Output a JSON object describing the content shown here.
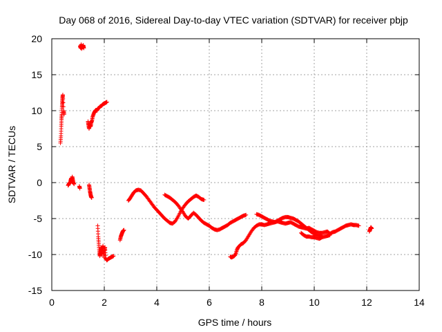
{
  "chart_data": {
    "type": "scatter",
    "title": "Day 068 of 2016, Sidereal Day-to-day VTEC variation (SDTVAR) for receiver pbjp",
    "xlabel": "GPS time / hours",
    "ylabel": "SDTVAR / TECUs",
    "xlim": [
      0,
      14
    ],
    "ylim": [
      -15,
      20
    ],
    "xticks": [
      "0",
      "2",
      "4",
      "6",
      "8",
      "10",
      "12",
      "14"
    ],
    "yticks": [
      "-15",
      "-10",
      "-5",
      "0",
      "5",
      "10",
      "15",
      "20"
    ],
    "grid": true,
    "marker": "+",
    "color": "#ff0000",
    "series": [
      {
        "name": "pbjp",
        "segments": [
          [
            [
              0.33,
              5.5
            ],
            [
              0.35,
              6.5
            ],
            [
              0.36,
              7.8
            ],
            [
              0.37,
              8.8
            ],
            [
              0.38,
              9.5
            ],
            [
              0.39,
              10.5
            ],
            [
              0.4,
              11.2
            ],
            [
              0.41,
              11.8
            ],
            [
              0.42,
              12.2
            ],
            [
              0.45,
              10.0
            ],
            [
              0.47,
              9.5
            ]
          ],
          [
            [
              1.08,
              19.0
            ],
            [
              1.1,
              18.7
            ],
            [
              1.12,
              19.2
            ],
            [
              1.14,
              18.6
            ],
            [
              1.16,
              19.0
            ],
            [
              1.18,
              18.8
            ],
            [
              1.2,
              19.1
            ],
            [
              1.22,
              18.7
            ]
          ],
          [
            [
              0.62,
              -0.4
            ],
            [
              0.65,
              -0.2
            ],
            [
              0.68,
              0.0
            ],
            [
              0.7,
              -0.1
            ],
            [
              0.72,
              0.3
            ],
            [
              0.74,
              0.6
            ],
            [
              0.76,
              0.2
            ],
            [
              0.78,
              0.8
            ],
            [
              0.8,
              0.4
            ],
            [
              0.82,
              0.0
            ],
            [
              0.85,
              -0.2
            ]
          ],
          [
            [
              1.05,
              -0.5
            ],
            [
              1.07,
              -0.8
            ]
          ],
          [
            [
              1.38,
              8.5
            ],
            [
              1.4,
              8.0
            ],
            [
              1.42,
              7.5
            ],
            [
              1.45,
              8.0
            ],
            [
              1.48,
              7.8
            ],
            [
              1.5,
              8.3
            ],
            [
              1.53,
              8.6
            ],
            [
              1.56,
              9.2
            ],
            [
              1.6,
              9.6
            ],
            [
              1.64,
              9.9
            ],
            [
              1.68,
              10.1
            ],
            [
              1.72,
              10.0
            ],
            [
              1.76,
              10.3
            ],
            [
              1.8,
              10.4
            ],
            [
              1.85,
              10.6
            ],
            [
              1.9,
              10.7
            ],
            [
              1.95,
              10.9
            ],
            [
              2.0,
              11.0
            ],
            [
              2.05,
              11.1
            ],
            [
              2.1,
              11.2
            ]
          ],
          [
            [
              1.42,
              -0.3
            ],
            [
              1.44,
              -0.8
            ],
            [
              1.46,
              -1.3
            ],
            [
              1.48,
              -1.7
            ],
            [
              1.5,
              -2.0
            ],
            [
              1.52,
              -2.1
            ]
          ],
          [
            [
              1.75,
              -6.0
            ],
            [
              1.77,
              -7.5
            ],
            [
              1.79,
              -8.5
            ],
            [
              1.81,
              -9.5
            ],
            [
              1.83,
              -10.2
            ],
            [
              1.85,
              -9.8
            ],
            [
              1.87,
              -9.0
            ],
            [
              1.89,
              -9.5
            ],
            [
              1.91,
              -10.0
            ],
            [
              1.93,
              -9.2
            ],
            [
              1.95,
              -8.8
            ],
            [
              1.97,
              -9.6
            ],
            [
              1.99,
              -10.4
            ],
            [
              2.01,
              -9.5
            ],
            [
              2.03,
              -9.0
            ],
            [
              2.05,
              -10.5
            ],
            [
              2.1,
              -10.8
            ],
            [
              2.15,
              -10.6
            ],
            [
              2.2,
              -10.5
            ],
            [
              2.25,
              -10.4
            ],
            [
              2.3,
              -10.3
            ],
            [
              2.35,
              -10.2
            ]
          ],
          [
            [
              2.6,
              -8.0
            ],
            [
              2.63,
              -7.5
            ],
            [
              2.66,
              -7.2
            ],
            [
              2.69,
              -6.9
            ],
            [
              2.72,
              -6.7
            ],
            [
              2.75,
              -6.6
            ]
          ],
          [
            [
              2.92,
              -2.5
            ],
            [
              2.98,
              -2.2
            ],
            [
              3.05,
              -1.8
            ],
            [
              3.12,
              -1.4
            ],
            [
              3.2,
              -1.1
            ],
            [
              3.3,
              -1.0
            ],
            [
              3.4,
              -1.1
            ],
            [
              3.5,
              -1.5
            ],
            [
              3.6,
              -1.9
            ],
            [
              3.7,
              -2.4
            ],
            [
              3.8,
              -2.9
            ],
            [
              3.9,
              -3.4
            ],
            [
              4.0,
              -3.8
            ],
            [
              4.1,
              -4.2
            ],
            [
              4.2,
              -4.6
            ],
            [
              4.3,
              -5.0
            ],
            [
              4.4,
              -5.3
            ],
            [
              4.5,
              -5.6
            ],
            [
              4.6,
              -5.7
            ],
            [
              4.7,
              -5.4
            ],
            [
              4.8,
              -4.8
            ],
            [
              4.9,
              -4.1
            ],
            [
              5.0,
              -3.5
            ],
            [
              5.1,
              -3.0
            ],
            [
              5.2,
              -2.6
            ],
            [
              5.3,
              -2.3
            ],
            [
              5.4,
              -2.0
            ],
            [
              5.5,
              -1.8
            ],
            [
              5.6,
              -2.0
            ],
            [
              5.7,
              -2.3
            ],
            [
              5.8,
              -2.4
            ]
          ],
          [
            [
              4.3,
              -1.7
            ],
            [
              4.4,
              -1.9
            ],
            [
              4.5,
              -2.1
            ],
            [
              4.6,
              -2.4
            ],
            [
              4.7,
              -2.7
            ],
            [
              4.8,
              -3.1
            ],
            [
              4.9,
              -3.6
            ],
            [
              5.0,
              -4.1
            ],
            [
              5.1,
              -4.7
            ],
            [
              5.2,
              -5.0
            ],
            [
              5.3,
              -4.6
            ],
            [
              5.4,
              -4.2
            ],
            [
              5.5,
              -4.5
            ],
            [
              5.6,
              -4.9
            ],
            [
              5.7,
              -5.3
            ],
            [
              5.8,
              -5.6
            ],
            [
              5.9,
              -5.8
            ],
            [
              6.0,
              -6.0
            ],
            [
              6.1,
              -6.3
            ],
            [
              6.2,
              -6.5
            ],
            [
              6.3,
              -6.6
            ],
            [
              6.4,
              -6.5
            ],
            [
              6.5,
              -6.3
            ],
            [
              6.6,
              -6.1
            ],
            [
              6.7,
              -5.9
            ],
            [
              6.8,
              -5.6
            ],
            [
              6.9,
              -5.4
            ],
            [
              7.0,
              -5.2
            ],
            [
              7.1,
              -5.0
            ],
            [
              7.2,
              -4.8
            ],
            [
              7.3,
              -4.6
            ],
            [
              7.4,
              -4.5
            ]
          ],
          [
            [
              6.8,
              -10.3
            ],
            [
              6.85,
              -10.4
            ],
            [
              6.9,
              -10.3
            ],
            [
              6.95,
              -10.2
            ],
            [
              7.0,
              -10.0
            ],
            [
              7.05,
              -9.4
            ],
            [
              7.1,
              -9.0
            ],
            [
              7.2,
              -8.6
            ],
            [
              7.3,
              -8.4
            ],
            [
              7.4,
              -8.0
            ],
            [
              7.5,
              -7.4
            ],
            [
              7.6,
              -6.8
            ],
            [
              7.7,
              -6.3
            ],
            [
              7.8,
              -6.0
            ],
            [
              7.9,
              -5.8
            ],
            [
              8.0,
              -5.8
            ],
            [
              8.1,
              -5.9
            ],
            [
              8.2,
              -5.8
            ],
            [
              8.3,
              -5.7
            ],
            [
              8.4,
              -5.6
            ],
            [
              8.5,
              -5.5
            ],
            [
              8.6,
              -5.4
            ],
            [
              8.7,
              -5.5
            ],
            [
              8.8,
              -5.6
            ],
            [
              8.9,
              -5.7
            ],
            [
              9.0,
              -5.6
            ],
            [
              9.1,
              -5.5
            ],
            [
              9.2,
              -5.7
            ],
            [
              9.3,
              -5.9
            ],
            [
              9.4,
              -6.1
            ],
            [
              9.5,
              -6.2
            ],
            [
              9.6,
              -6.3
            ],
            [
              9.7,
              -6.4
            ],
            [
              9.8,
              -6.3
            ],
            [
              9.9,
              -6.5
            ],
            [
              10.0,
              -6.7
            ],
            [
              10.1,
              -6.9
            ],
            [
              10.2,
              -7.0
            ],
            [
              10.3,
              -7.0
            ],
            [
              10.4,
              -6.9
            ],
            [
              10.5,
              -6.8
            ],
            [
              10.6,
              -7.1
            ],
            [
              10.7,
              -6.9
            ],
            [
              10.8,
              -6.8
            ],
            [
              10.9,
              -6.6
            ],
            [
              11.0,
              -6.4
            ],
            [
              11.1,
              -6.2
            ],
            [
              11.2,
              -6.0
            ],
            [
              11.3,
              -5.9
            ],
            [
              11.4,
              -5.8
            ],
            [
              11.5,
              -5.9
            ],
            [
              11.6,
              -5.9
            ],
            [
              11.7,
              -6.0
            ]
          ],
          [
            [
              7.8,
              -4.4
            ],
            [
              7.9,
              -4.5
            ],
            [
              8.0,
              -4.7
            ],
            [
              8.1,
              -4.9
            ],
            [
              8.2,
              -5.1
            ],
            [
              8.3,
              -5.3
            ],
            [
              8.4,
              -5.4
            ],
            [
              8.5,
              -5.5
            ],
            [
              8.6,
              -5.3
            ],
            [
              8.7,
              -5.1
            ],
            [
              8.8,
              -4.9
            ],
            [
              8.9,
              -4.8
            ],
            [
              9.0,
              -4.8
            ],
            [
              9.1,
              -4.9
            ],
            [
              9.2,
              -5.0
            ],
            [
              9.3,
              -5.2
            ],
            [
              9.4,
              -5.4
            ],
            [
              9.5,
              -5.7
            ],
            [
              9.6,
              -6.0
            ],
            [
              9.7,
              -6.3
            ],
            [
              9.8,
              -6.6
            ],
            [
              9.9,
              -6.9
            ],
            [
              10.0,
              -7.1
            ],
            [
              10.1,
              -7.3
            ],
            [
              10.2,
              -7.4
            ],
            [
              10.3,
              -7.5
            ]
          ],
          [
            [
              9.5,
              -7.0
            ],
            [
              9.6,
              -7.3
            ],
            [
              9.7,
              -7.5
            ],
            [
              9.8,
              -7.5
            ],
            [
              9.9,
              -7.6
            ],
            [
              10.0,
              -7.6
            ],
            [
              10.1,
              -7.7
            ],
            [
              10.2,
              -7.8
            ],
            [
              10.3,
              -7.6
            ],
            [
              10.4,
              -7.5
            ],
            [
              10.5,
              -7.4
            ],
            [
              10.6,
              -7.3
            ]
          ],
          [
            [
              12.1,
              -6.8
            ],
            [
              12.13,
              -6.5
            ],
            [
              12.16,
              -6.2
            ],
            [
              12.19,
              -6.4
            ]
          ]
        ]
      }
    ]
  }
}
